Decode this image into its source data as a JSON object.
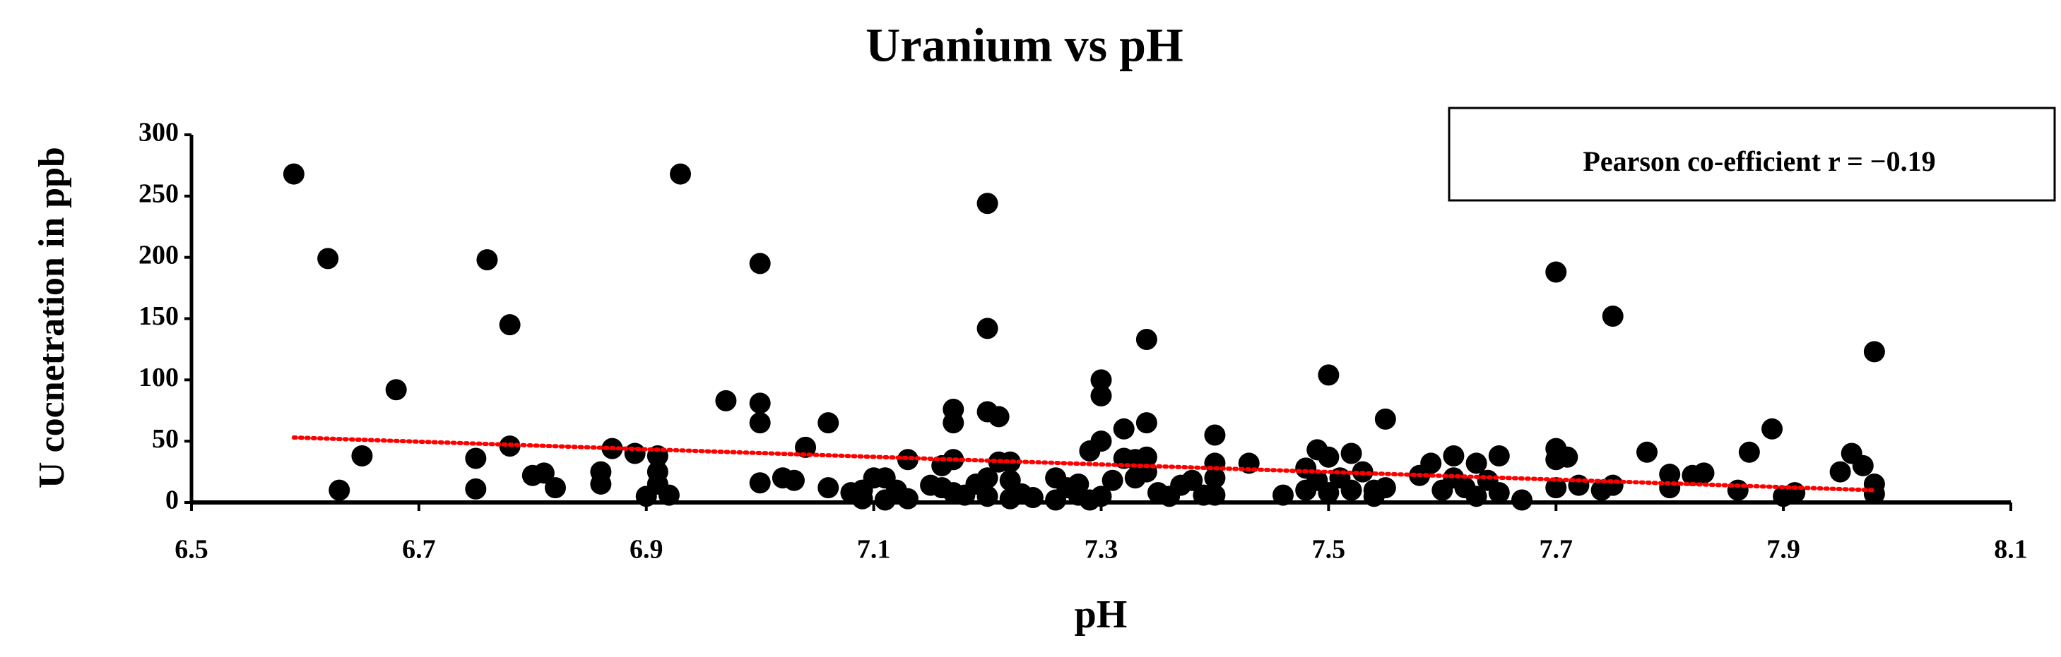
{
  "chart_data": {
    "type": "scatter",
    "title": "Uranium vs pH",
    "xlabel": "pH",
    "ylabel": "U cocnetration in ppb",
    "annotation": "Pearson co-efficient r = −0.19",
    "xlim": [
      6.5,
      8.1
    ],
    "xticks": [
      6.5,
      6.7,
      6.9,
      7.1,
      7.3,
      7.5,
      7.7,
      7.9,
      8.1
    ],
    "ylim": [
      0,
      300
    ],
    "yticks": [
      0,
      50,
      100,
      150,
      200,
      250,
      300
    ],
    "color": "#000000",
    "trendline": {
      "x": [
        6.59,
        7.98
      ],
      "y": [
        53,
        10
      ],
      "color": "#ff0000"
    },
    "x": [
      6.59,
      6.62,
      6.63,
      6.65,
      6.68,
      6.75,
      6.75,
      6.76,
      6.78,
      6.78,
      6.8,
      6.81,
      6.82,
      6.86,
      6.86,
      6.87,
      6.89,
      6.9,
      6.91,
      6.91,
      6.91,
      6.92,
      6.93,
      6.97,
      7.0,
      7.0,
      7.0,
      7.0,
      7.02,
      7.03,
      7.04,
      7.06,
      7.06,
      7.08,
      7.09,
      7.09,
      7.1,
      7.11,
      7.11,
      7.12,
      7.13,
      7.13,
      7.15,
      7.16,
      7.16,
      7.17,
      7.17,
      7.17,
      7.17,
      7.18,
      7.19,
      7.2,
      7.2,
      7.2,
      7.2,
      7.2,
      7.21,
      7.21,
      7.22,
      7.22,
      7.22,
      7.23,
      7.24,
      7.26,
      7.26,
      7.27,
      7.28,
      7.28,
      7.29,
      7.29,
      7.3,
      7.3,
      7.3,
      7.3,
      7.31,
      7.32,
      7.32,
      7.33,
      7.33,
      7.34,
      7.34,
      7.34,
      7.34,
      7.35,
      7.36,
      7.37,
      7.38,
      7.39,
      7.4,
      7.4,
      7.4,
      7.4,
      7.43,
      7.46,
      7.48,
      7.48,
      7.49,
      7.49,
      7.5,
      7.5,
      7.5,
      7.51,
      7.52,
      7.52,
      7.53,
      7.54,
      7.54,
      7.55,
      7.55,
      7.58,
      7.59,
      7.6,
      7.61,
      7.61,
      7.62,
      7.63,
      7.63,
      7.64,
      7.65,
      7.65,
      7.67,
      7.7,
      7.7,
      7.7,
      7.7,
      7.71,
      7.72,
      7.74,
      7.75,
      7.75,
      7.78,
      7.8,
      7.8,
      7.82,
      7.83,
      7.86,
      7.87,
      7.89,
      7.9,
      7.91,
      7.95,
      7.96,
      7.97,
      7.98,
      7.98,
      7.98
    ],
    "y": [
      268,
      199,
      10,
      38,
      92,
      36,
      11,
      198,
      145,
      46,
      22,
      24,
      12,
      25,
      15,
      44,
      40,
      5,
      15,
      38,
      25,
      6,
      268,
      83,
      195,
      81,
      65,
      16,
      20,
      18,
      45,
      65,
      12,
      8,
      3,
      10,
      20,
      2,
      20,
      10,
      3,
      35,
      14,
      12,
      30,
      76,
      65,
      35,
      8,
      6,
      15,
      244,
      142,
      74,
      20,
      5,
      70,
      33,
      18,
      3,
      33,
      7,
      4,
      20,
      2,
      12,
      15,
      6,
      42,
      2,
      100,
      87,
      50,
      5,
      18,
      60,
      36,
      35,
      20,
      133,
      65,
      37,
      25,
      8,
      5,
      14,
      18,
      6,
      55,
      32,
      20,
      6,
      32,
      6,
      10,
      28,
      18,
      43,
      104,
      37,
      8,
      20,
      40,
      10,
      25,
      10,
      5,
      68,
      12,
      22,
      32,
      10,
      20,
      38,
      12,
      5,
      32,
      18,
      38,
      8,
      2,
      188,
      44,
      35,
      12,
      37,
      14,
      10,
      152,
      14,
      41,
      23,
      12,
      22,
      24,
      10,
      41,
      60,
      5,
      8,
      25,
      40,
      30,
      123,
      15,
      7
    ]
  }
}
